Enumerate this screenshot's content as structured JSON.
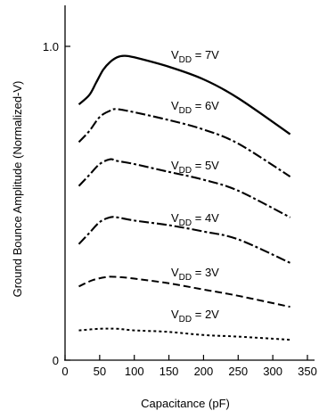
{
  "chart_data": {
    "type": "line",
    "title": "",
    "xlabel": "Capacitance (pF)",
    "ylabel": "Ground Bounce Amplitude (Normalized-V)",
    "xlim": [
      0,
      350
    ],
    "ylim": [
      0,
      1.0
    ],
    "x_ticks": [
      "0",
      "50",
      "100",
      "150",
      "200",
      "250",
      "300",
      "350"
    ],
    "y_ticks": [
      "0",
      "1.0"
    ],
    "grid": false,
    "series": [
      {
        "name_prefix": "V",
        "name_sub": "DD",
        "name_suffix": " = 7V",
        "line_style": "solid",
        "x": [
          20,
          35,
          45,
          55,
          65,
          75,
          85,
          100,
          150,
          200,
          250,
          325
        ],
        "y": [
          0.815,
          0.845,
          0.885,
          0.925,
          0.95,
          0.965,
          0.97,
          0.965,
          0.935,
          0.895,
          0.835,
          0.72
        ]
      },
      {
        "name_prefix": "V",
        "name_sub": "DD",
        "name_suffix": " = 6V",
        "line_style": "dash-dot",
        "x": [
          20,
          35,
          50,
          65,
          75,
          100,
          150,
          200,
          250,
          325
        ],
        "y": [
          0.695,
          0.73,
          0.775,
          0.795,
          0.8,
          0.79,
          0.765,
          0.735,
          0.69,
          0.585
        ]
      },
      {
        "name_prefix": "V",
        "name_sub": "DD",
        "name_suffix": " = 5V",
        "line_style": "dash-dot",
        "x": [
          20,
          35,
          50,
          65,
          75,
          100,
          150,
          200,
          250,
          325
        ],
        "y": [
          0.555,
          0.59,
          0.625,
          0.64,
          0.635,
          0.625,
          0.6,
          0.575,
          0.54,
          0.455
        ]
      },
      {
        "name_prefix": "V",
        "name_sub": "DD",
        "name_suffix": " = 4V",
        "line_style": "dash-dot",
        "x": [
          20,
          35,
          50,
          65,
          75,
          100,
          150,
          200,
          250,
          325
        ],
        "y": [
          0.37,
          0.405,
          0.44,
          0.455,
          0.455,
          0.445,
          0.43,
          0.41,
          0.385,
          0.31
        ]
      },
      {
        "name_prefix": "V",
        "name_sub": "DD",
        "name_suffix": " = 3V",
        "line_style": "dashed",
        "x": [
          20,
          40,
          60,
          75,
          100,
          150,
          200,
          250,
          325
        ],
        "y": [
          0.235,
          0.255,
          0.265,
          0.265,
          0.26,
          0.245,
          0.225,
          0.205,
          0.17
        ]
      },
      {
        "name_prefix": "V",
        "name_sub": "DD",
        "name_suffix": " = 2V",
        "line_style": "dotted",
        "x": [
          20,
          50,
          75,
          100,
          150,
          200,
          250,
          325
        ],
        "y": [
          0.095,
          0.1,
          0.1,
          0.095,
          0.09,
          0.08,
          0.075,
          0.065
        ]
      }
    ]
  }
}
